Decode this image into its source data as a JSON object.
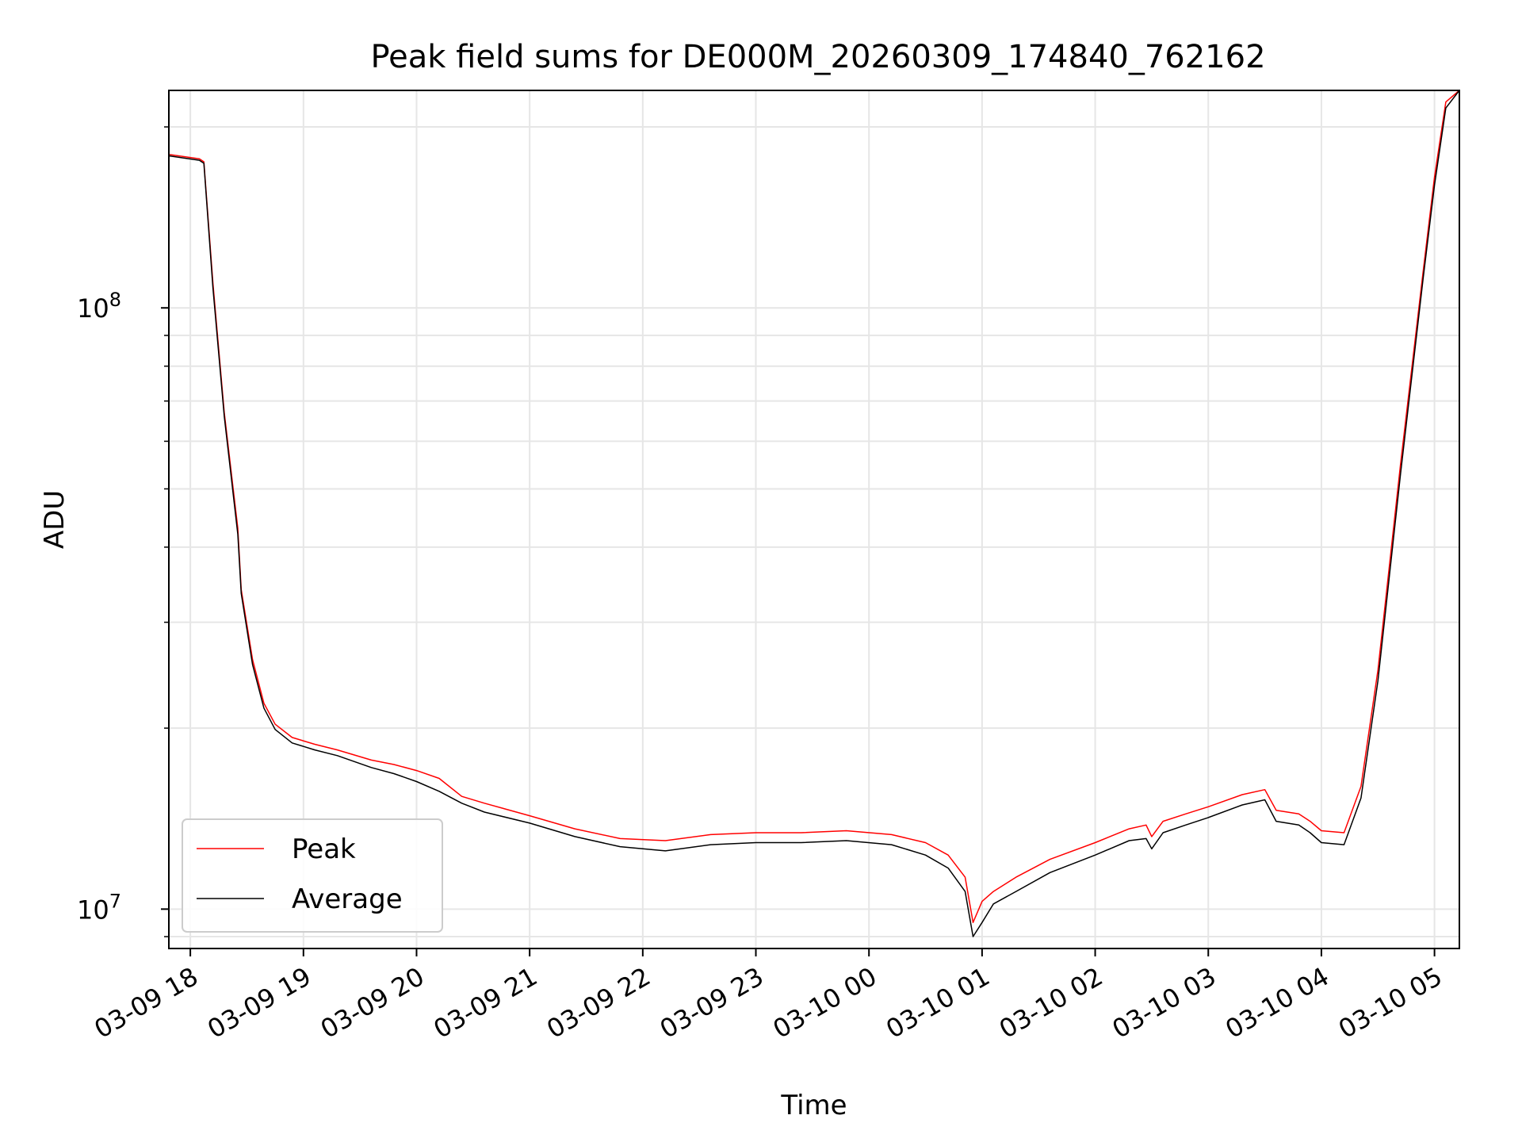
{
  "chart_data": {
    "type": "line",
    "title": "Peak field sums for DE000M_20260309_174840_762162",
    "xlabel": "Time",
    "ylabel": "ADU",
    "yscale": "log",
    "ylim": [
      8600000,
      230000000
    ],
    "xlim_hours": [
      17.81,
      29.22
    ],
    "grid": true,
    "legend_position": "lower-left",
    "x_ticks": [
      {
        "hour": 18,
        "label": "03-09 18"
      },
      {
        "hour": 19,
        "label": "03-09 19"
      },
      {
        "hour": 20,
        "label": "03-09 20"
      },
      {
        "hour": 21,
        "label": "03-09 21"
      },
      {
        "hour": 22,
        "label": "03-09 22"
      },
      {
        "hour": 23,
        "label": "03-09 23"
      },
      {
        "hour": 24,
        "label": "03-10 00"
      },
      {
        "hour": 25,
        "label": "03-10 01"
      },
      {
        "hour": 26,
        "label": "03-10 02"
      },
      {
        "hour": 27,
        "label": "03-10 03"
      },
      {
        "hour": 28,
        "label": "03-10 04"
      },
      {
        "hour": 29,
        "label": "03-10 05"
      }
    ],
    "y_major_ticks": [
      {
        "value": 10000000,
        "base": "10",
        "exp": "7"
      },
      {
        "value": 100000000,
        "base": "10",
        "exp": "8"
      }
    ],
    "series": [
      {
        "name": "Peak",
        "color": "#ff0000",
        "x": [
          17.81,
          18.08,
          18.12,
          18.2,
          18.3,
          18.42,
          18.45,
          18.55,
          18.65,
          18.75,
          18.9,
          19.1,
          19.3,
          19.6,
          19.8,
          20.0,
          20.2,
          20.4,
          20.6,
          21.0,
          21.4,
          21.8,
          22.2,
          22.6,
          23.0,
          23.4,
          23.8,
          24.2,
          24.5,
          24.7,
          24.85,
          24.92,
          25.0,
          25.1,
          25.3,
          25.6,
          26.0,
          26.3,
          26.45,
          26.5,
          26.6,
          26.8,
          27.0,
          27.3,
          27.5,
          27.6,
          27.8,
          27.9,
          28.0,
          28.2,
          28.35,
          28.5,
          28.7,
          28.9,
          29.0,
          29.1,
          29.22
        ],
        "y": [
          180000000,
          177000000,
          175000000,
          110000000,
          67000000,
          43000000,
          34000000,
          26000000,
          22000000,
          20300000,
          19300000,
          18800000,
          18400000,
          17700000,
          17400000,
          17000000,
          16500000,
          15400000,
          15000000,
          14300000,
          13600000,
          13100000,
          13000000,
          13300000,
          13400000,
          13400000,
          13500000,
          13300000,
          12900000,
          12300000,
          11300000,
          9500000,
          10300000,
          10700000,
          11300000,
          12100000,
          12900000,
          13600000,
          13800000,
          13200000,
          14000000,
          14400000,
          14800000,
          15500000,
          15800000,
          14600000,
          14400000,
          14000000,
          13500000,
          13400000,
          16000000,
          25000000,
          55000000,
          115000000,
          165000000,
          220000000,
          230000000
        ]
      },
      {
        "name": "Average",
        "color": "#000000",
        "x": [
          17.81,
          18.08,
          18.12,
          18.2,
          18.3,
          18.42,
          18.45,
          18.55,
          18.65,
          18.75,
          18.9,
          19.1,
          19.3,
          19.6,
          19.8,
          20.0,
          20.2,
          20.4,
          20.6,
          21.0,
          21.4,
          21.8,
          22.2,
          22.6,
          23.0,
          23.4,
          23.8,
          24.2,
          24.5,
          24.7,
          24.85,
          24.92,
          25.0,
          25.1,
          25.3,
          25.6,
          26.0,
          26.3,
          26.45,
          26.5,
          26.6,
          26.8,
          27.0,
          27.3,
          27.5,
          27.6,
          27.8,
          27.9,
          28.0,
          28.2,
          28.35,
          28.5,
          28.7,
          28.9,
          29.0,
          29.1,
          29.22
        ],
        "y": [
          179000000,
          176000000,
          174000000,
          108000000,
          66000000,
          42000000,
          33500000,
          25500000,
          21600000,
          19900000,
          18900000,
          18400000,
          18000000,
          17200000,
          16800000,
          16300000,
          15700000,
          15000000,
          14500000,
          13900000,
          13200000,
          12700000,
          12500000,
          12800000,
          12900000,
          12900000,
          13000000,
          12800000,
          12300000,
          11700000,
          10700000,
          9000000,
          9500000,
          10200000,
          10700000,
          11500000,
          12300000,
          13000000,
          13100000,
          12600000,
          13400000,
          13800000,
          14200000,
          14900000,
          15200000,
          14000000,
          13800000,
          13400000,
          12900000,
          12800000,
          15300000,
          24000000,
          53000000,
          112000000,
          160000000,
          215000000,
          230000000
        ]
      }
    ]
  }
}
